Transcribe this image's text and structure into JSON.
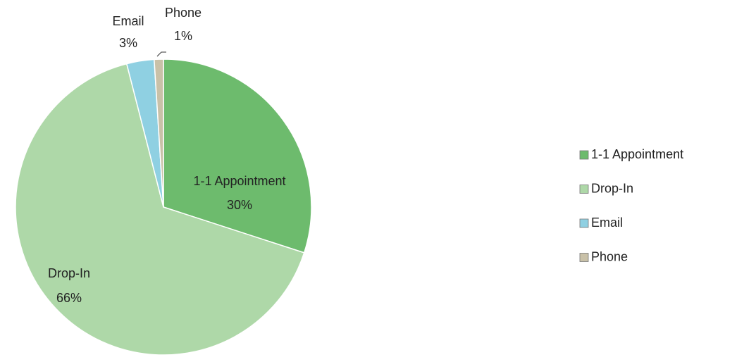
{
  "chart_data": {
    "type": "pie",
    "categories": [
      "1-1 Appointment",
      "Drop-In",
      "Email",
      "Phone"
    ],
    "values": [
      30,
      66,
      3,
      1
    ],
    "value_labels": [
      "30%",
      "66%",
      "3%",
      "1%"
    ],
    "colors": [
      "#6dbb6d",
      "#aed8a8",
      "#8fd0e2",
      "#c9c1a8"
    ],
    "legend": "right"
  }
}
